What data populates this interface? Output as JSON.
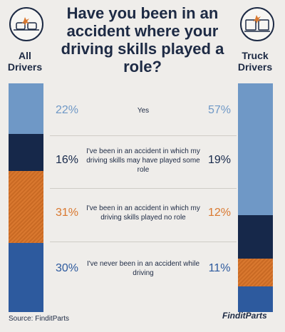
{
  "title": "Have you been in an accident where your driving skills played a role?",
  "source": "Source: FinditParts",
  "logo": "FinditParts",
  "colors": {
    "yes": "#6f98c6",
    "some_role": "#16284a",
    "no_role": "#d9782f",
    "never": "#2d5a9e"
  },
  "chart_data": {
    "type": "bar",
    "stacked": true,
    "title": "Have you been in an accident where your driving skills played a role?",
    "categories": [
      "All Drivers",
      "Truck Drivers"
    ],
    "series": [
      {
        "name": "Yes",
        "values": [
          22,
          57
        ],
        "color": "#6f98c6"
      },
      {
        "name": "I've been in an accident in which my driving skills may have played some role",
        "values": [
          16,
          19
        ],
        "color": "#16284a"
      },
      {
        "name": "I've been in an accident in which my driving skills played no role",
        "values": [
          31,
          12
        ],
        "color": "#d9782f"
      },
      {
        "name": "I've never been in an accident while driving",
        "values": [
          30,
          11
        ],
        "color": "#2d5a9e"
      }
    ],
    "value_labels": [
      {
        "left": "22%",
        "right": "57%"
      },
      {
        "left": "16%",
        "right": "19%"
      },
      {
        "left": "31%",
        "right": "12%"
      },
      {
        "left": "30%",
        "right": "11%"
      }
    ]
  },
  "labels": {
    "left_group": "All Drivers",
    "right_group": "Truck Drivers"
  }
}
